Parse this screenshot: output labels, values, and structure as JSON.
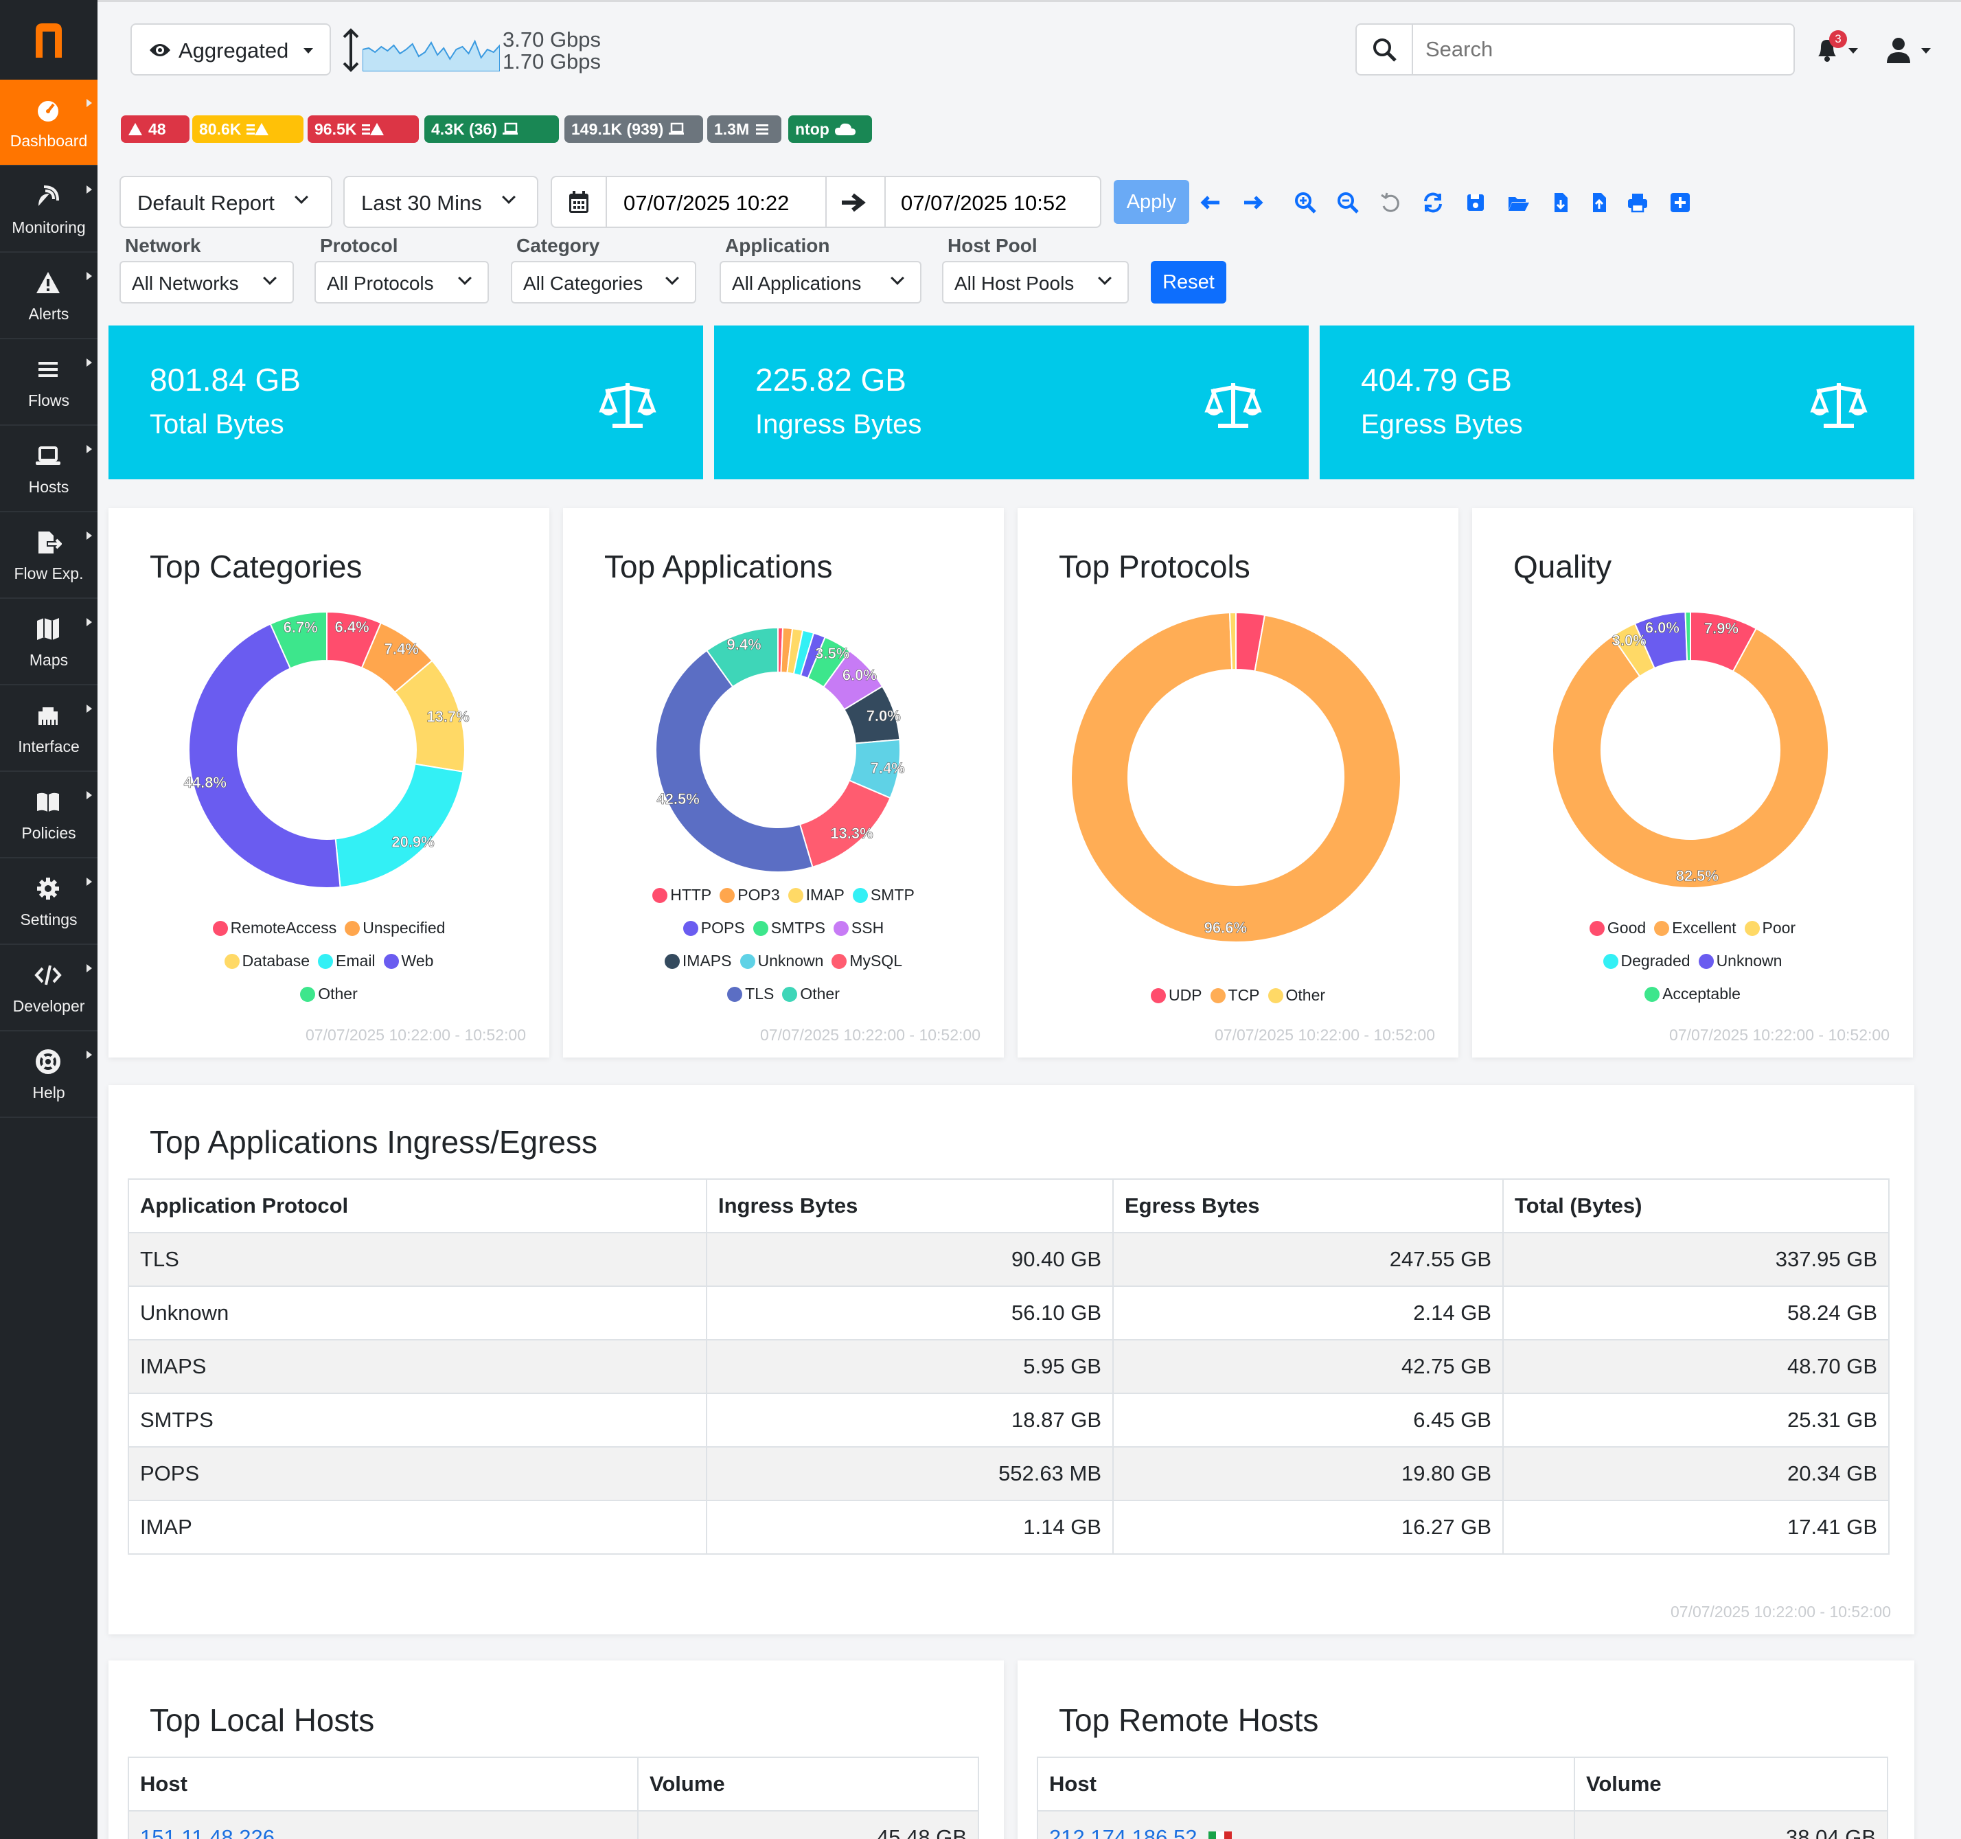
{
  "sidebar": {
    "logo": "n",
    "items": [
      {
        "label": "Dashboard",
        "icon": "speedometer-icon"
      },
      {
        "label": "Monitoring",
        "icon": "satellite-dish-icon"
      },
      {
        "label": "Alerts",
        "icon": "warning-icon"
      },
      {
        "label": "Flows",
        "icon": "menu-lines-icon"
      },
      {
        "label": "Hosts",
        "icon": "laptop-icon"
      },
      {
        "label": "Flow Exp.",
        "icon": "file-export-icon"
      },
      {
        "label": "Maps",
        "icon": "map-icon"
      },
      {
        "label": "Interface",
        "icon": "ethernet-icon"
      },
      {
        "label": "Policies",
        "icon": "book-icon"
      },
      {
        "label": "Settings",
        "icon": "gear-icon"
      },
      {
        "label": "Developer",
        "icon": "code-icon"
      },
      {
        "label": "Help",
        "icon": "life-ring-icon"
      }
    ]
  },
  "header": {
    "interface_label": "Aggregated",
    "traffic_up": "3.70 Gbps",
    "traffic_down": "1.70 Gbps",
    "search_placeholder": "Search",
    "notifications_count": "3"
  },
  "badges": [
    {
      "text": "48",
      "color": "#dc3545"
    },
    {
      "text": "80.6K",
      "color": "#ffc107"
    },
    {
      "text": "96.5K",
      "color": "#dc3545"
    },
    {
      "text": "4.3K (36)",
      "color": "#198754"
    },
    {
      "text": "149.1K (939)",
      "color": "#6c757d"
    },
    {
      "text": "1.3M",
      "color": "#6c757d"
    },
    {
      "text": "ntop",
      "color": "#198754"
    }
  ],
  "toolbar": {
    "report": "Default Report",
    "range": "Last 30 Mins",
    "date_from": "07/07/2025 10:22",
    "date_to": "07/07/2025 10:52",
    "apply_label": "Apply",
    "icons": [
      "arrow-left-icon",
      "arrow-right-icon",
      "zoom-in-icon",
      "zoom-out-icon",
      "undo-icon",
      "refresh-icon",
      "save-icon",
      "open-folder-icon",
      "file-download-icon",
      "file-upload-icon",
      "print-icon",
      "add-icon"
    ]
  },
  "filters": {
    "network": {
      "label": "Network",
      "value": "All Networks"
    },
    "protocol": {
      "label": "Protocol",
      "value": "All Protocols"
    },
    "category": {
      "label": "Category",
      "value": "All Categories"
    },
    "application": {
      "label": "Application",
      "value": "All Applications"
    },
    "host_pool": {
      "label": "Host Pool",
      "value": "All Host Pools"
    },
    "reset_label": "Reset"
  },
  "stats": [
    {
      "value": "801.84 GB",
      "label": "Total Bytes"
    },
    {
      "value": "225.82 GB",
      "label": "Ingress Bytes"
    },
    {
      "value": "404.79 GB",
      "label": "Egress Bytes"
    }
  ],
  "chart_data": [
    {
      "type": "pie",
      "title": "Top Categories",
      "labels": [
        "RemoteAccess",
        "Unspecified",
        "Database",
        "Email",
        "Web",
        "Other"
      ],
      "values": [
        6.4,
        7.4,
        13.7,
        20.9,
        44.8,
        6.7
      ],
      "colors": [
        "#ff4d6d",
        "#ffa64d",
        "#ffd966",
        "#33f0f5",
        "#6a5cf0",
        "#3de68c"
      ],
      "legend_rows": [
        [
          0,
          1
        ],
        [
          2,
          3,
          4
        ],
        [
          5
        ]
      ],
      "footer": "07/07/2025 10:22:00 - 10:52:00"
    },
    {
      "type": "pie",
      "title": "Top Applications",
      "labels": [
        "HTTP",
        "POP3",
        "IMAP",
        "SMTP",
        "POPS",
        "SMTPS",
        "SSH",
        "IMAPS",
        "Unknown",
        "MySQL",
        "TLS",
        "Other"
      ],
      "values": [
        0.6,
        1.2,
        1.3,
        1.4,
        1.5,
        3.5,
        6.0,
        7.0,
        7.4,
        13.3,
        42.5,
        9.4
      ],
      "colors": [
        "#ff4d6d",
        "#ffa64d",
        "#ffd966",
        "#33f0f5",
        "#6a5cf0",
        "#3de68c",
        "#c77bf5",
        "#344a5e",
        "#5fd2e6",
        "#ff5c70",
        "#5b6ec4",
        "#3ed6b8"
      ],
      "legend_rows": [
        [
          0,
          1,
          2,
          3
        ],
        [
          4,
          5,
          6
        ],
        [
          7,
          8,
          9
        ],
        [
          10,
          11
        ]
      ],
      "footer": "07/07/2025 10:22:00 - 10:52:00"
    },
    {
      "type": "pie",
      "title": "Top Protocols",
      "labels": [
        "UDP",
        "TCP",
        "Other"
      ],
      "values": [
        2.8,
        96.6,
        0.6
      ],
      "colors": [
        "#ff4d6d",
        "#ffad55",
        "#ffd966"
      ],
      "legend_rows": [
        [
          0,
          1,
          2
        ]
      ],
      "footer": "07/07/2025 10:22:00 - 10:52:00"
    },
    {
      "type": "pie",
      "title": "Quality",
      "labels": [
        "Good",
        "Excellent",
        "Poor",
        "Degraded",
        "Unknown",
        "Acceptable"
      ],
      "values": [
        7.9,
        82.5,
        3.0,
        0,
        6.0,
        0.6
      ],
      "colors": [
        "#ff4d6d",
        "#ffad55",
        "#ffd966",
        "#33f0f5",
        "#6a5cf0",
        "#3de68c"
      ],
      "legend_rows": [
        [
          0,
          1,
          2
        ],
        [
          3,
          4
        ],
        [
          5
        ]
      ],
      "footer": "07/07/2025 10:22:00 - 10:52:00"
    },
    {
      "type": "table",
      "title": "Top Applications Ingress/Egress",
      "columns": [
        "Application Protocol",
        "Ingress Bytes",
        "Egress Bytes",
        "Total (Bytes)"
      ],
      "rows": [
        [
          "TLS",
          "90.40 GB",
          "247.55 GB",
          "337.95 GB"
        ],
        [
          "Unknown",
          "56.10 GB",
          "2.14 GB",
          "58.24 GB"
        ],
        [
          "IMAPS",
          "5.95 GB",
          "42.75 GB",
          "48.70 GB"
        ],
        [
          "SMTPS",
          "18.87 GB",
          "6.45 GB",
          "25.31 GB"
        ],
        [
          "POPS",
          "552.63 MB",
          "19.80 GB",
          "20.34 GB"
        ],
        [
          "IMAP",
          "1.14 GB",
          "16.27 GB",
          "17.41 GB"
        ]
      ],
      "footer": "07/07/2025 10:22:00 - 10:52:00"
    }
  ],
  "local_hosts": {
    "title": "Top Local Hosts",
    "columns": [
      "Host",
      "Volume"
    ],
    "rows": [
      [
        "151.11.48.226",
        "45.48 GB"
      ]
    ]
  },
  "remote_hosts": {
    "title": "Top Remote Hosts",
    "columns": [
      "Host",
      "Volume"
    ],
    "rows": [
      [
        "212.174.186.52",
        "38.04 GB"
      ]
    ]
  }
}
